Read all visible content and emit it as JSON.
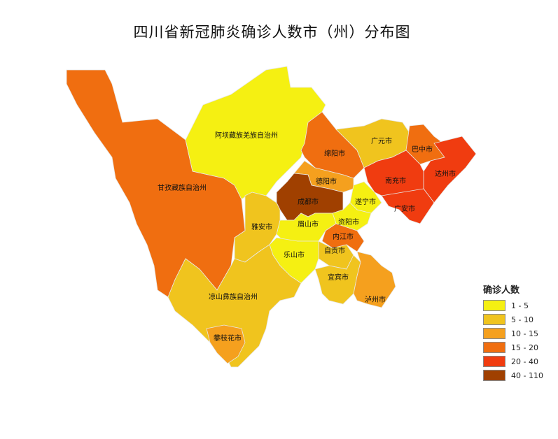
{
  "title": "四川省新冠肺炎确诊人数市（州）分布图",
  "legend": {
    "title": "确诊人数",
    "items": [
      {
        "label": "1 - 5",
        "color": "#f5f012"
      },
      {
        "label": "5 - 10",
        "color": "#f0c41e"
      },
      {
        "label": "10 - 15",
        "color": "#f5a01e"
      },
      {
        "label": "15 - 20",
        "color": "#f06e10"
      },
      {
        "label": "20 - 40",
        "color": "#f03c10"
      },
      {
        "label": "40 - 110",
        "color": "#a04000"
      }
    ]
  },
  "regions": [
    {
      "name": "甘孜藏族自治州",
      "class": 3
    },
    {
      "name": "阿坝藏族羌族自治州",
      "class": 0
    },
    {
      "name": "绵阳市",
      "class": 3
    },
    {
      "name": "广元市",
      "class": 1
    },
    {
      "name": "巴中市",
      "class": 3
    },
    {
      "name": "达州市",
      "class": 4
    },
    {
      "name": "南充市",
      "class": 4
    },
    {
      "name": "广安市",
      "class": 4
    },
    {
      "name": "德阳市",
      "class": 2
    },
    {
      "name": "成都市",
      "class": 5
    },
    {
      "name": "遂宁市",
      "class": 0
    },
    {
      "name": "资阳市",
      "class": 0
    },
    {
      "name": "眉山市",
      "class": 0
    },
    {
      "name": "内江市",
      "class": 3
    },
    {
      "name": "自贡市",
      "class": 1
    },
    {
      "name": "乐山市",
      "class": 0
    },
    {
      "name": "宜宾市",
      "class": 1
    },
    {
      "name": "泸州市",
      "class": 2
    },
    {
      "name": "雅安市",
      "class": 1
    },
    {
      "name": "凉山彝族自治州",
      "class": 1
    },
    {
      "name": "攀枝花市",
      "class": 2
    }
  ]
}
